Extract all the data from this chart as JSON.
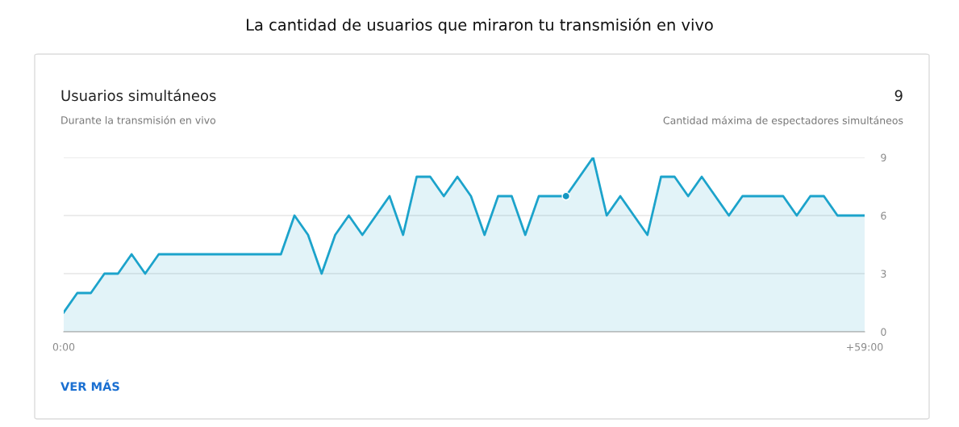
{
  "chart_data": {
    "type": "area",
    "title": "La cantidad de usuarios que miraron tu transmisión en vivo",
    "subtitle": "Usuarios simultáneos",
    "annotations": [
      "Durante la transmisión en vivo",
      "9",
      "Cantidad máxima de espectadores simultáneos",
      "VER MÁS"
    ],
    "categories": [
      "0:00",
      null,
      null,
      null,
      null,
      null,
      null,
      null,
      null,
      null,
      null,
      null,
      null,
      null,
      null,
      null,
      null,
      null,
      null,
      null,
      null,
      null,
      null,
      null,
      null,
      null,
      null,
      null,
      null,
      null,
      null,
      null,
      null,
      null,
      null,
      null,
      null,
      null,
      null,
      null,
      null,
      null,
      null,
      null,
      null,
      null,
      null,
      null,
      null,
      null,
      null,
      null,
      null,
      null,
      null,
      null,
      null,
      null,
      null,
      "+59:00"
    ],
    "series": [
      {
        "color": "#1ca3cb",
        "values": [
          1,
          2,
          2,
          3,
          3,
          4,
          3,
          4,
          4,
          4,
          4,
          4,
          4,
          4,
          4,
          4,
          4,
          6,
          5,
          3,
          5,
          6,
          5,
          6,
          7,
          5,
          8,
          8,
          7,
          8,
          7,
          5,
          7,
          7,
          5,
          7,
          7,
          7,
          8,
          9,
          6,
          7,
          6,
          5,
          8,
          8,
          7,
          8,
          7,
          6,
          7,
          7,
          7,
          7,
          6,
          7,
          7,
          6,
          6,
          6
        ]
      },
      {
        "type": "scatter",
        "color": "#1497c2",
        "values": [
          null,
          null,
          null,
          null,
          null,
          null,
          null,
          null,
          null,
          null,
          null,
          null,
          null,
          null,
          null,
          null,
          null,
          null,
          null,
          null,
          null,
          null,
          null,
          null,
          null,
          null,
          null,
          null,
          null,
          null,
          null,
          null,
          null,
          null,
          null,
          null,
          null,
          7,
          null,
          null,
          null,
          null,
          null,
          null,
          null,
          null,
          null,
          null,
          null,
          null,
          null,
          null,
          null,
          null,
          null,
          null,
          null,
          null,
          null,
          null
        ]
      }
    ],
    "ylim": [
      0,
      9
    ],
    "yticks": [
      0,
      3,
      6,
      9
    ],
    "grid": "y"
  }
}
